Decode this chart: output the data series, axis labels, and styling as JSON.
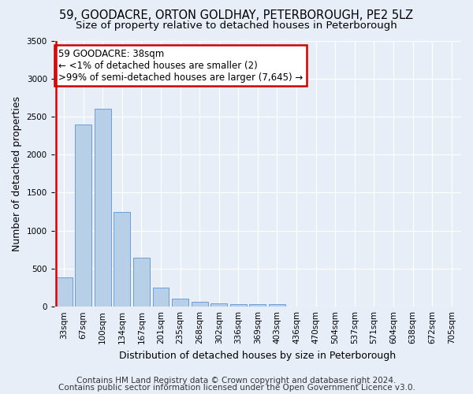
{
  "title1": "59, GOODACRE, ORTON GOLDHAY, PETERBOROUGH, PE2 5LZ",
  "title2": "Size of property relative to detached houses in Peterborough",
  "xlabel": "Distribution of detached houses by size in Peterborough",
  "ylabel": "Number of detached properties",
  "categories": [
    "33sqm",
    "67sqm",
    "100sqm",
    "134sqm",
    "167sqm",
    "201sqm",
    "235sqm",
    "268sqm",
    "302sqm",
    "336sqm",
    "369sqm",
    "403sqm",
    "436sqm",
    "470sqm",
    "504sqm",
    "537sqm",
    "571sqm",
    "604sqm",
    "638sqm",
    "672sqm",
    "705sqm"
  ],
  "values": [
    390,
    2400,
    2600,
    1250,
    640,
    250,
    110,
    60,
    45,
    30,
    30,
    30,
    0,
    0,
    0,
    0,
    0,
    0,
    0,
    0,
    0
  ],
  "bar_color": "#b8cfe8",
  "bar_edge_color": "#6a9fd8",
  "highlight_color": "#dd0000",
  "ylim": [
    0,
    3500
  ],
  "yticks": [
    0,
    500,
    1000,
    1500,
    2000,
    2500,
    3000,
    3500
  ],
  "annotation_line1": "59 GOODACRE: 38sqm",
  "annotation_line2": "← <1% of detached houses are smaller (2)",
  "annotation_line3": ">99% of semi-detached houses are larger (7,645) →",
  "annotation_box_color": "#ffffff",
  "annotation_box_edge_color": "#cc0000",
  "footer1": "Contains HM Land Registry data © Crown copyright and database right 2024.",
  "footer2": "Contains public sector information licensed under the Open Government Licence v3.0.",
  "bg_color": "#e8eef8",
  "plot_bg_color": "#e8eef8",
  "grid_color": "#ffffff",
  "title_fontsize": 10.5,
  "subtitle_fontsize": 9.5,
  "axis_label_fontsize": 9,
  "tick_fontsize": 7.5,
  "annotation_fontsize": 8.5,
  "footer_fontsize": 7.5
}
